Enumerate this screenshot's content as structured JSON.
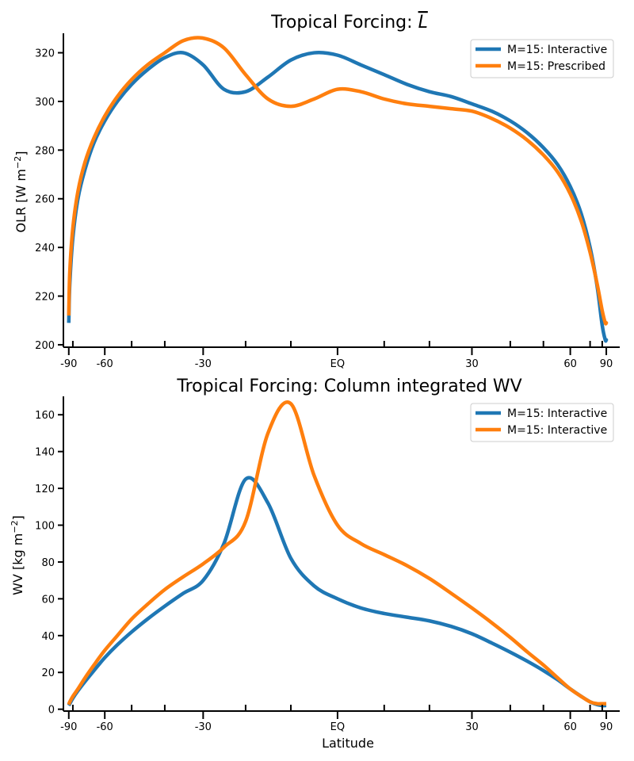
{
  "chart_data": [
    {
      "type": "line",
      "title": "Tropical Forcing: ",
      "title_symbol": "L",
      "xlabel": "",
      "ylabel": "OLR [W m",
      "ylabel_sup": "−2",
      "ylabel_tail": "]",
      "xlim": [
        -1.02,
        1.05
      ],
      "ylim": [
        199,
        328
      ],
      "yticks": [
        200,
        220,
        240,
        260,
        280,
        300,
        320
      ],
      "xtick_values": [
        -90,
        -60,
        -30,
        0,
        30,
        60,
        90
      ],
      "xtick_labels": [
        "-90",
        "-60",
        "-30",
        "EQ",
        "30",
        "60",
        "90"
      ],
      "minor_xticks": [
        -80,
        -50,
        -40,
        -20,
        -10,
        10,
        20,
        40,
        50,
        70,
        80
      ],
      "legend": {
        "placement": "top-right"
      },
      "series": [
        {
          "name": "M=15: Interactive",
          "color": "#1f77b4",
          "x": [
            -90,
            -85,
            -80,
            -75,
            -70,
            -65,
            -60,
            -55,
            -50,
            -45,
            -40,
            -35,
            -30,
            -25,
            -20,
            -15,
            -10,
            -5,
            0,
            5,
            10,
            15,
            20,
            25,
            30,
            35,
            40,
            45,
            50,
            55,
            60,
            65,
            70,
            75,
            80,
            85,
            89,
            90
          ],
          "y": [
            209,
            225,
            244,
            260,
            272,
            283,
            292,
            300,
            307,
            313,
            318,
            320,
            315,
            305,
            304,
            310,
            317,
            320,
            319,
            315,
            311,
            307,
            304,
            302,
            299,
            296,
            292,
            287,
            281,
            274,
            265,
            254,
            240,
            224,
            208,
            202,
            202,
            202
          ]
        },
        {
          "name": "M=15: Prescribed",
          "color": "#ff7f0e",
          "x": [
            -90,
            -85,
            -80,
            -75,
            -70,
            -65,
            -60,
            -55,
            -50,
            -45,
            -40,
            -35,
            -30,
            -25,
            -20,
            -15,
            -10,
            -5,
            0,
            5,
            10,
            15,
            20,
            25,
            30,
            35,
            40,
            45,
            50,
            55,
            60,
            65,
            70,
            75,
            80,
            85,
            89,
            90
          ],
          "y": [
            212,
            230,
            248,
            263,
            275,
            285,
            294,
            302,
            309,
            315,
            320,
            325,
            326,
            322,
            311,
            301,
            298,
            301,
            305,
            304,
            301,
            299,
            298,
            297,
            296,
            293,
            289,
            284,
            278,
            271,
            262,
            251,
            238,
            225,
            214,
            209,
            209,
            209
          ]
        }
      ]
    },
    {
      "type": "line",
      "title": "Tropical Forcing: Column integrated WV",
      "xlabel": "Latitude",
      "ylabel": "WV [kg m",
      "ylabel_sup": "−2",
      "ylabel_tail": "]",
      "xlim": [
        -1.02,
        1.05
      ],
      "ylim": [
        -1,
        170
      ],
      "yticks": [
        0,
        20,
        40,
        60,
        80,
        100,
        120,
        140,
        160
      ],
      "xtick_values": [
        -90,
        -60,
        -30,
        0,
        30,
        60,
        90
      ],
      "xtick_labels": [
        "-90",
        "-60",
        "-30",
        "EQ",
        "30",
        "60",
        "90"
      ],
      "minor_xticks": [
        -80,
        -50,
        -40,
        -20,
        -10,
        10,
        20,
        40,
        50,
        70,
        80
      ],
      "legend": {
        "placement": "top-right"
      },
      "series": [
        {
          "name": "M=15: Interactive",
          "color": "#1f77b4",
          "x": [
            -90,
            -85,
            -80,
            -75,
            -70,
            -65,
            -60,
            -55,
            -50,
            -45,
            -40,
            -35,
            -30,
            -25,
            -20,
            -15,
            -10,
            -5,
            0,
            5,
            10,
            15,
            20,
            25,
            30,
            35,
            40,
            45,
            50,
            55,
            60,
            65,
            70,
            75,
            80,
            85,
            90
          ],
          "y": [
            2,
            3,
            6,
            10,
            15,
            21,
            28,
            35,
            42,
            49,
            56,
            63,
            70,
            90,
            125,
            112,
            82,
            67,
            60,
            55,
            52,
            50,
            48,
            45,
            41,
            36,
            31,
            26,
            21,
            16,
            11,
            7,
            4,
            2.5,
            2,
            2,
            2
          ]
        },
        {
          "name": "M=15: Interactive",
          "color": "#ff7f0e",
          "x": [
            -90,
            -85,
            -80,
            -75,
            -70,
            -65,
            -60,
            -55,
            -50,
            -45,
            -40,
            -35,
            -30,
            -25,
            -20,
            -15,
            -10,
            -5,
            0,
            5,
            10,
            15,
            20,
            25,
            30,
            35,
            40,
            45,
            50,
            55,
            60,
            65,
            70,
            75,
            80,
            85,
            90
          ],
          "y": [
            2.5,
            4,
            7,
            11,
            17,
            24,
            32,
            40,
            49,
            57,
            65,
            72,
            79,
            88,
            102,
            150,
            166,
            127,
            100,
            90,
            84,
            78,
            71,
            63,
            55,
            47,
            39,
            31,
            24,
            17,
            11,
            7,
            4,
            3,
            3,
            3,
            3
          ]
        }
      ]
    }
  ]
}
